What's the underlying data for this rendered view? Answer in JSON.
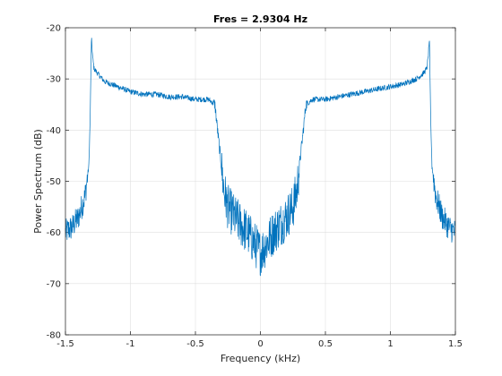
{
  "chart_data": {
    "type": "line",
    "title": "Fres = 2.9304 Hz",
    "xlabel": "Frequency (kHz)",
    "ylabel": "Power Spectrum (dB)",
    "xlim": [
      -1.5,
      1.5
    ],
    "ylim": [
      -80,
      -20
    ],
    "x_ticks": [
      -1.5,
      -1,
      -0.5,
      0,
      0.5,
      1,
      1.5
    ],
    "x_tick_labels": [
      "-1.5",
      "-1",
      "-0.5",
      "0",
      "0.5",
      "1",
      "1.5"
    ],
    "y_ticks": [
      -80,
      -70,
      -60,
      -50,
      -40,
      -30,
      -20
    ],
    "y_tick_labels": [
      "-80",
      "-70",
      "-60",
      "-50",
      "-40",
      "-30",
      "-20"
    ],
    "grid": true,
    "line_color": "#0072BD",
    "series": [
      {
        "x": [
          -1.5,
          -1.45,
          -1.4,
          -1.35,
          -1.32,
          -1.31,
          -1.3,
          -1.29,
          -1.28,
          -1.25,
          -1.2,
          -1.1,
          -1.0,
          -0.9,
          -0.8,
          -0.7,
          -0.6,
          -0.5,
          -0.4,
          -0.35,
          -0.33,
          -0.3,
          -0.28,
          -0.25,
          -0.2,
          -0.15,
          -0.1,
          -0.05,
          0.0,
          0.05,
          0.1,
          0.15,
          0.2,
          0.25,
          0.28,
          0.3,
          0.33,
          0.35,
          0.4,
          0.5,
          0.6,
          0.7,
          0.8,
          0.9,
          1.0,
          1.1,
          1.2,
          1.25,
          1.28,
          1.29,
          1.3,
          1.31,
          1.32,
          1.35,
          1.4,
          1.45,
          1.5
        ],
        "y": [
          -60,
          -59,
          -57,
          -53,
          -47,
          -38,
          -22,
          -26,
          -28,
          -29,
          -30.5,
          -31.5,
          -32.5,
          -33,
          -33,
          -33.5,
          -33.5,
          -34,
          -34,
          -35,
          -40,
          -47,
          -52,
          -55,
          -57,
          -58.5,
          -60,
          -62,
          -64,
          -62,
          -60,
          -58.5,
          -57,
          -55,
          -52,
          -47,
          -40,
          -35,
          -34,
          -34,
          -33.5,
          -33,
          -32.5,
          -32,
          -31.5,
          -31,
          -30,
          -29,
          -28,
          -26,
          -22,
          -38,
          -47,
          -53,
          -57,
          -59,
          -60
        ]
      }
    ]
  }
}
